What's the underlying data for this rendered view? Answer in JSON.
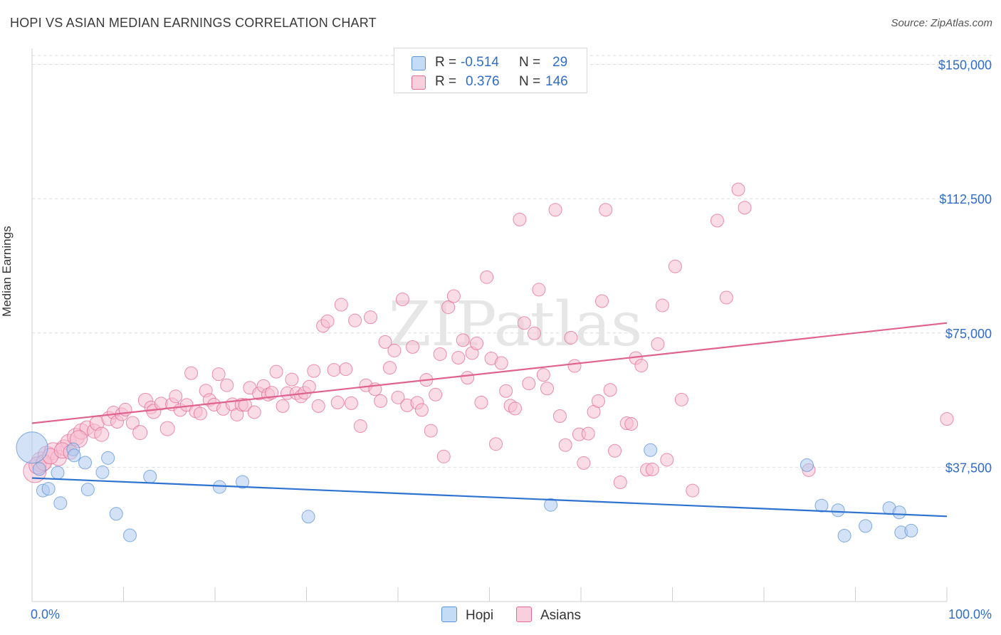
{
  "title": "HOPI VS ASIAN MEDIAN EARNINGS CORRELATION CHART",
  "source": "Source: ZipAtlas.com",
  "watermark": "ZIPatlas",
  "legend": {
    "hopi": {
      "r_label": "R =",
      "r_value": "-0.514",
      "n_label": "N =",
      "n_value": "29"
    },
    "asians": {
      "r_label": "R =",
      "r_value": "0.376",
      "n_label": "N =",
      "n_value": "146"
    }
  },
  "colors": {
    "hopi": "#5b93d8",
    "hopi_fill": "#aecbf0",
    "asians": "#e56a96",
    "asians_fill": "#f6bfd2",
    "axis_text": "#2f6dc9"
  },
  "chart_data": {
    "type": "scatter",
    "title": "HOPI VS ASIAN MEDIAN EARNINGS CORRELATION CHART",
    "xlabel": "",
    "ylabel": "Median Earnings",
    "xlim": [
      0,
      100
    ],
    "ylim": [
      0,
      152500
    ],
    "x_tick_labels": [
      "0.0%",
      "100.0%"
    ],
    "y_ticks": [
      37500,
      75000,
      112500,
      150000
    ],
    "y_tick_labels": [
      "$37,500",
      "$75,000",
      "$112,500",
      "$150,000"
    ],
    "legend": [
      "Hopi",
      "Asians"
    ],
    "series": [
      {
        "name": "Hopi",
        "trend": {
          "x": [
            0,
            100
          ],
          "y": [
            34500,
            23800
          ]
        },
        "points": [
          [
            0,
            43000,
            22
          ],
          [
            0.8,
            37000,
            9
          ],
          [
            1.2,
            31000,
            9
          ],
          [
            1.8,
            31500,
            9
          ],
          [
            2.8,
            36000,
            9
          ],
          [
            3.1,
            27500,
            9
          ],
          [
            4.5,
            42500,
            9
          ],
          [
            4.6,
            40800,
            9
          ],
          [
            5.8,
            38800,
            9
          ],
          [
            6.1,
            31300,
            9
          ],
          [
            7.7,
            36100,
            9
          ],
          [
            8.3,
            40100,
            9
          ],
          [
            9.2,
            24500,
            9
          ],
          [
            10.7,
            18500,
            9
          ],
          [
            12.9,
            34900,
            9
          ],
          [
            20.5,
            32000,
            9
          ],
          [
            23.0,
            33400,
            9
          ],
          [
            30.2,
            23700,
            9
          ],
          [
            56.7,
            27000,
            9
          ],
          [
            67.6,
            42300,
            9
          ],
          [
            84.7,
            38100,
            9
          ],
          [
            86.3,
            26800,
            9
          ],
          [
            88.1,
            25500,
            9
          ],
          [
            88.8,
            18400,
            9
          ],
          [
            91.1,
            21100,
            9
          ],
          [
            93.7,
            26100,
            9
          ],
          [
            94.8,
            24900,
            9
          ],
          [
            95.0,
            19300,
            9
          ],
          [
            96.1,
            19800,
            9
          ]
        ]
      },
      {
        "name": "Asians",
        "trend": {
          "x": [
            0,
            100
          ],
          "y": [
            49800,
            77800
          ]
        },
        "points": [
          [
            0.3,
            36400,
            16
          ],
          [
            1.0,
            39000,
            14
          ],
          [
            1.6,
            41000,
            12
          ],
          [
            2.3,
            42000,
            12
          ],
          [
            2.9,
            40100,
            11
          ],
          [
            3.5,
            43000,
            11
          ],
          [
            4.0,
            44500,
            11
          ],
          [
            4.8,
            46000,
            12
          ],
          [
            5.4,
            47500,
            11
          ],
          [
            6.0,
            48500,
            10
          ],
          [
            6.8,
            47600,
            10
          ],
          [
            7.1,
            49800,
            10
          ],
          [
            7.6,
            46700,
            10
          ],
          [
            8.4,
            51100,
            10
          ],
          [
            8.9,
            52800,
            9
          ],
          [
            9.3,
            50200,
            9
          ],
          [
            9.8,
            52300,
            9
          ],
          [
            10.2,
            53600,
            9
          ],
          [
            11.0,
            49900,
            9
          ],
          [
            11.8,
            47200,
            10
          ],
          [
            12.4,
            56200,
            10
          ],
          [
            13.0,
            54200,
            9
          ],
          [
            13.3,
            53100,
            10
          ],
          [
            14.1,
            55300,
            9
          ],
          [
            14.8,
            48300,
            10
          ],
          [
            15.3,
            55100,
            9
          ],
          [
            15.7,
            57300,
            9
          ],
          [
            16.2,
            53500,
            9
          ],
          [
            16.9,
            54900,
            9
          ],
          [
            17.4,
            63800,
            9
          ],
          [
            17.9,
            53100,
            9
          ],
          [
            18.4,
            52500,
            9
          ],
          [
            19.0,
            58900,
            9
          ],
          [
            19.4,
            56300,
            9
          ],
          [
            19.9,
            55000,
            9
          ],
          [
            20.4,
            63500,
            9
          ],
          [
            20.9,
            53800,
            9
          ],
          [
            21.3,
            60400,
            9
          ],
          [
            21.9,
            55100,
            9
          ],
          [
            22.4,
            52200,
            9
          ],
          [
            22.9,
            55000,
            9
          ],
          [
            23.3,
            54900,
            9
          ],
          [
            23.8,
            59700,
            9
          ],
          [
            24.3,
            52900,
            9
          ],
          [
            24.8,
            58100,
            9
          ],
          [
            25.3,
            60200,
            9
          ],
          [
            25.8,
            57800,
            9
          ],
          [
            26.2,
            58300,
            9
          ],
          [
            26.7,
            64200,
            9
          ],
          [
            27.4,
            54600,
            9
          ],
          [
            27.9,
            58200,
            9
          ],
          [
            28.4,
            62000,
            9
          ],
          [
            28.9,
            58200,
            9
          ],
          [
            29.4,
            57300,
            9
          ],
          [
            29.8,
            58300,
            9
          ],
          [
            30.3,
            60000,
            9
          ],
          [
            30.8,
            64400,
            9
          ],
          [
            31.3,
            54600,
            9
          ],
          [
            31.8,
            77000,
            9
          ],
          [
            32.3,
            78300,
            9
          ],
          [
            33.0,
            64700,
            9
          ],
          [
            33.4,
            55600,
            9
          ],
          [
            33.8,
            82900,
            9
          ],
          [
            34.3,
            64900,
            9
          ],
          [
            34.9,
            55400,
            9
          ],
          [
            35.3,
            78500,
            9
          ],
          [
            35.9,
            49000,
            9
          ],
          [
            36.5,
            60400,
            9
          ],
          [
            37.0,
            79400,
            9
          ],
          [
            37.5,
            59300,
            9
          ],
          [
            38.1,
            56000,
            9
          ],
          [
            38.6,
            72500,
            9
          ],
          [
            39.1,
            65300,
            9
          ],
          [
            39.6,
            70100,
            9
          ],
          [
            40.0,
            57000,
            9
          ],
          [
            40.5,
            84400,
            9
          ],
          [
            41.0,
            54800,
            9
          ],
          [
            41.6,
            71100,
            9
          ],
          [
            42.1,
            55500,
            9
          ],
          [
            42.6,
            53500,
            9
          ],
          [
            43.1,
            61900,
            9
          ],
          [
            43.6,
            47700,
            9
          ],
          [
            44.1,
            57800,
            9
          ],
          [
            44.6,
            69100,
            9
          ],
          [
            45.0,
            40500,
            9
          ],
          [
            45.5,
            82200,
            9
          ],
          [
            46.1,
            85300,
            9
          ],
          [
            46.6,
            68100,
            9
          ],
          [
            47.1,
            73000,
            9
          ],
          [
            47.6,
            62500,
            9
          ],
          [
            48.1,
            69400,
            9
          ],
          [
            48.6,
            72100,
            9
          ],
          [
            49.1,
            55600,
            9
          ],
          [
            49.7,
            90600,
            9
          ],
          [
            50.2,
            67900,
            9
          ],
          [
            50.7,
            44000,
            9
          ],
          [
            51.3,
            66600,
            9
          ],
          [
            51.8,
            58800,
            9
          ],
          [
            52.3,
            54700,
            9
          ],
          [
            52.8,
            53900,
            9
          ],
          [
            53.3,
            106700,
            9
          ],
          [
            53.8,
            77800,
            9
          ],
          [
            54.3,
            60900,
            9
          ],
          [
            54.9,
            74900,
            9
          ],
          [
            55.4,
            87100,
            9
          ],
          [
            55.9,
            63300,
            9
          ],
          [
            56.3,
            59500,
            9
          ],
          [
            57.2,
            109400,
            9
          ],
          [
            57.7,
            51800,
            9
          ],
          [
            58.3,
            43700,
            9
          ],
          [
            58.9,
            73700,
            9
          ],
          [
            59.3,
            65800,
            9
          ],
          [
            59.8,
            46700,
            9
          ],
          [
            60.3,
            38700,
            9
          ],
          [
            60.8,
            46900,
            9
          ],
          [
            61.4,
            53000,
            9
          ],
          [
            61.9,
            56000,
            9
          ],
          [
            62.3,
            83900,
            9
          ],
          [
            62.7,
            109400,
            9
          ],
          [
            63.2,
            59100,
            9
          ],
          [
            63.7,
            42100,
            9
          ],
          [
            64.3,
            33300,
            9
          ],
          [
            65.0,
            49800,
            9
          ],
          [
            65.5,
            49600,
            9
          ],
          [
            66.0,
            68000,
            9
          ],
          [
            66.6,
            65900,
            9
          ],
          [
            67.2,
            36800,
            9
          ],
          [
            67.8,
            36900,
            9
          ],
          [
            68.4,
            71900,
            9
          ],
          [
            68.9,
            82700,
            9
          ],
          [
            69.4,
            39600,
            9
          ],
          [
            70.3,
            93600,
            9
          ],
          [
            71.0,
            56400,
            9
          ],
          [
            72.2,
            31000,
            9
          ],
          [
            74.9,
            106400,
            9
          ],
          [
            75.9,
            84900,
            9
          ],
          [
            77.2,
            115100,
            9
          ],
          [
            77.9,
            110000,
            9
          ],
          [
            84.9,
            36700,
            9
          ],
          [
            100.0,
            51000,
            9
          ],
          [
            0.6,
            38000,
            12
          ],
          [
            1.3,
            38800,
            11
          ],
          [
            2.0,
            40600,
            11
          ],
          [
            3.3,
            42200,
            11
          ],
          [
            4.2,
            41700,
            10
          ],
          [
            5.1,
            45400,
            12
          ]
        ]
      }
    ]
  }
}
